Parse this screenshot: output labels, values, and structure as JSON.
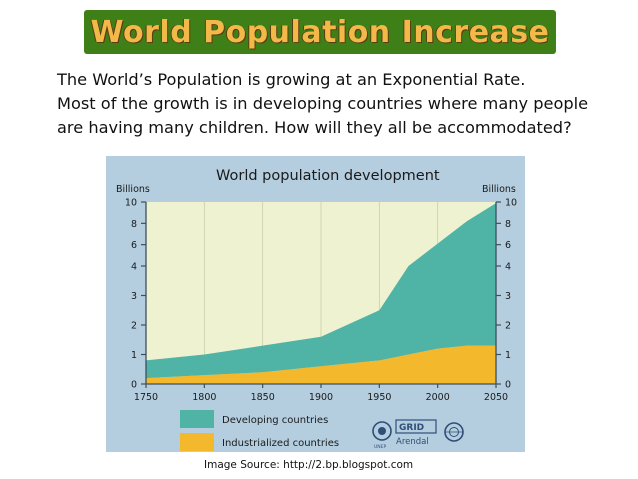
{
  "slide": {
    "title": "World Population Increase",
    "intro_lines": [
      "The World’s Population is growing at an Exponential Rate.",
      "Most of the growth is in developing countries where many people",
      "are having many children. How will they all be accommodated?"
    ],
    "source": "Image Source: http://2.bp.blogspot.com"
  },
  "colors": {
    "title_bg": "#3f7f17",
    "title_text": "#f2b94a",
    "chart_panel": "#b4cee0",
    "plot_bg": "#eef2d0",
    "developing": "#4fb3a6",
    "industrialized": "#f4b82c",
    "axis": "#3d4f5c"
  },
  "logos": {
    "unep": "UNEP",
    "grid_line1": "GRID",
    "grid_line2": "Arendal"
  },
  "chart_data": {
    "type": "area",
    "title": "World population development",
    "ylabel_left": "Billions",
    "ylabel_right": "Billions",
    "x": [
      1750,
      1800,
      1850,
      1900,
      1950,
      1975,
      2000,
      2025,
      2050
    ],
    "xticks": [
      "1750",
      "1800",
      "1850",
      "1900",
      "1950",
      "2000",
      "2050"
    ],
    "xlim": [
      1750,
      2050
    ],
    "ylim": [
      0,
      10
    ],
    "yticks_left": [
      "0",
      "1",
      "2",
      "3",
      "4",
      "6",
      "8",
      "10"
    ],
    "yticks_right": [
      "0",
      "1",
      "2",
      "3",
      "4",
      "6",
      "8",
      "10"
    ],
    "axis_break": "between 4 and 10 the scale is compressed (4, 6, 8, 10)",
    "stacked": true,
    "grid": true,
    "legend": "bottom",
    "series": [
      {
        "name": "Industrialized countries",
        "values": [
          0.2,
          0.3,
          0.4,
          0.6,
          0.8,
          1.0,
          1.2,
          1.3,
          1.3
        ]
      },
      {
        "name": "Developing countries",
        "values": [
          0.6,
          0.7,
          0.9,
          1.0,
          1.7,
          3.0,
          4.9,
          6.9,
          8.6
        ]
      }
    ],
    "totals": [
      0.8,
      1.0,
      1.3,
      1.6,
      2.5,
      4.0,
      6.1,
      8.2,
      9.9
    ]
  }
}
